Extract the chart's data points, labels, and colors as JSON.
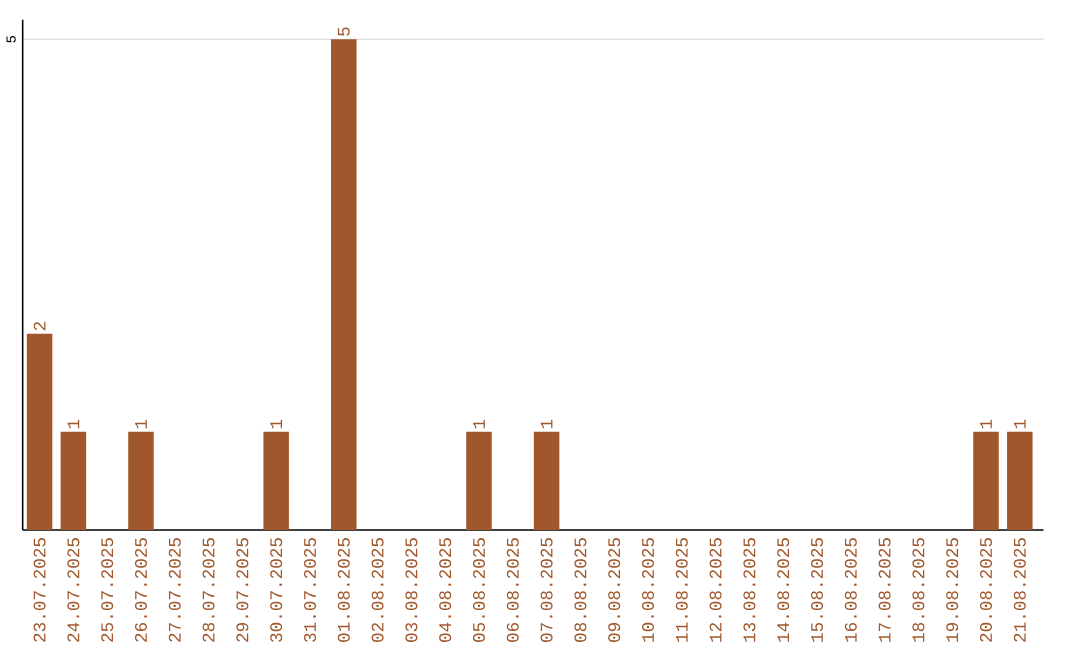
{
  "chart_data": {
    "type": "bar",
    "categories": [
      "23.07.2025",
      "24.07.2025",
      "25.07.2025",
      "26.07.2025",
      "27.07.2025",
      "28.07.2025",
      "29.07.2025",
      "30.07.2025",
      "31.07.2025",
      "01.08.2025",
      "02.08.2025",
      "03.08.2025",
      "04.08.2025",
      "05.08.2025",
      "06.08.2025",
      "07.08.2025",
      "08.08.2025",
      "09.08.2025",
      "10.08.2025",
      "11.08.2025",
      "12.08.2025",
      "13.08.2025",
      "14.08.2025",
      "15.08.2025",
      "16.08.2025",
      "17.08.2025",
      "18.08.2025",
      "19.08.2025",
      "20.08.2025",
      "21.08.2025"
    ],
    "values": [
      2,
      1,
      0,
      1,
      0,
      0,
      0,
      1,
      0,
      5,
      0,
      0,
      0,
      1,
      0,
      1,
      0,
      0,
      0,
      0,
      0,
      0,
      0,
      0,
      0,
      0,
      0,
      0,
      1,
      1
    ],
    "value_labels": [
      "2",
      "1",
      null,
      "1",
      null,
      null,
      null,
      "1",
      null,
      "5",
      null,
      null,
      null,
      "1",
      null,
      "1",
      null,
      null,
      null,
      null,
      null,
      null,
      null,
      null,
      null,
      null,
      null,
      null,
      "1",
      "1"
    ],
    "color": "#a0572b",
    "ylim": [
      0,
      5.2
    ],
    "yticks": [
      5
    ],
    "grid": "y"
  }
}
